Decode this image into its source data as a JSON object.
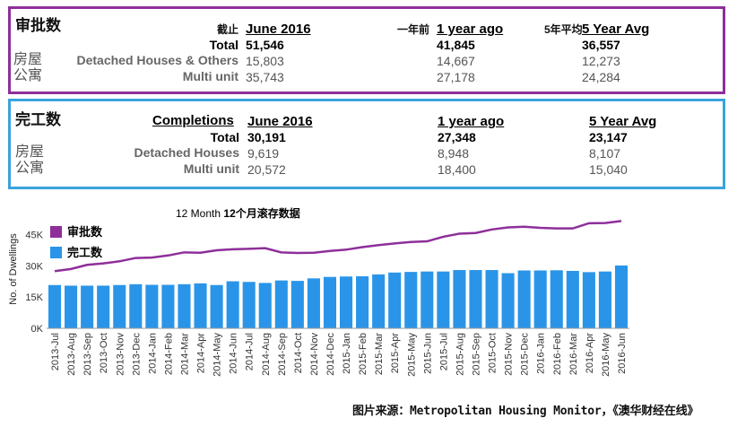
{
  "approvals": {
    "title_cn": "审批数",
    "asof_cn": "截止",
    "asof": "June 2016",
    "year_ago_cn": "一年前",
    "year_ago": "1 year ago",
    "avg_cn": "5年平均",
    "avg": "5 Year Avg",
    "rows": [
      {
        "cn": "",
        "label": "Total",
        "current": "51,546",
        "year_ago": "41,845",
        "avg": "36,557"
      },
      {
        "cn": "房屋",
        "label": "Detached Houses & Others",
        "current": "15,803",
        "year_ago": "14,667",
        "avg": "12,273"
      },
      {
        "cn": "公寓",
        "label": "Multi unit",
        "current": "35,743",
        "year_ago": "27,178",
        "avg": "24,284"
      }
    ]
  },
  "completions": {
    "title_cn": "完工数",
    "label": "Completions",
    "asof": "June 2016",
    "year_ago": "1 year ago",
    "avg": "5 Year Avg",
    "rows": [
      {
        "cn": "",
        "label": "Total",
        "current": "30,191",
        "year_ago": "27,348",
        "avg": "23,147"
      },
      {
        "cn": "房屋",
        "label": "Detached Houses",
        "current": "9,619",
        "year_ago": "8,948",
        "avg": "8,107"
      },
      {
        "cn": "公寓",
        "label": "Multi unit",
        "current": "20,572",
        "year_ago": "18,400",
        "avg": "15,040"
      }
    ]
  },
  "chart_data": {
    "type": "bar",
    "title_en": "12 Month",
    "title_cn": "12个月滚存数据",
    "ylabel": "No. of Dwellings",
    "ylim": [
      0,
      50000
    ],
    "yticks": [
      0,
      15000,
      30000,
      45000
    ],
    "ytick_labels": [
      "0K",
      "15K",
      "30K",
      "45K"
    ],
    "grid": false,
    "legend_position": "top-left",
    "categories": [
      "2013-Jul",
      "2013-Aug",
      "2013-Sep",
      "2013-Oct",
      "2013-Nov",
      "2013-Dec",
      "2014-Jan",
      "2014-Feb",
      "2014-Mar",
      "2014-Apr",
      "2014-May",
      "2014-Jun",
      "2014-Jul",
      "2014-Aug",
      "2014-Sep",
      "2014-Oct",
      "2014-Nov",
      "2014-Dec",
      "2015-Jan",
      "2015-Feb",
      "2015-Mar",
      "2015-Apr",
      "2015-May",
      "2015-Jun",
      "2015-Jul",
      "2015-Aug",
      "2015-Sep",
      "2015-Oct",
      "2015-Nov",
      "2015-Dec",
      "2016-Jan",
      "2016-Feb",
      "2016-Mar",
      "2016-Apr",
      "2016-May",
      "2016-Jun"
    ],
    "series": [
      {
        "name": "审批数",
        "kind": "line",
        "color": "#8e2f9a",
        "values": [
          27500,
          28500,
          30500,
          31200,
          32200,
          33800,
          34000,
          35000,
          36500,
          36300,
          37500,
          38000,
          38200,
          38500,
          36500,
          36200,
          36300,
          37200,
          37800,
          39000,
          40000,
          40800,
          41500,
          41800,
          44000,
          45500,
          45800,
          47500,
          48500,
          48800,
          48300,
          48000,
          48000,
          50500,
          50600,
          51546
        ]
      },
      {
        "name": "完工数",
        "kind": "bar",
        "color": "#2a95e8",
        "values": [
          20800,
          20500,
          20500,
          20500,
          20800,
          21200,
          20900,
          20900,
          21200,
          21600,
          20800,
          22600,
          22300,
          21800,
          23000,
          22800,
          24000,
          24700,
          24900,
          25000,
          25900,
          26800,
          27100,
          27300,
          27300,
          28000,
          28000,
          28000,
          26500,
          27800,
          27800,
          27900,
          27600,
          27000,
          27300,
          30191
        ]
      }
    ]
  },
  "source": {
    "label": "图片来源：",
    "text": "Metropolitan Housing Monitor，《澳华财经在线》"
  }
}
